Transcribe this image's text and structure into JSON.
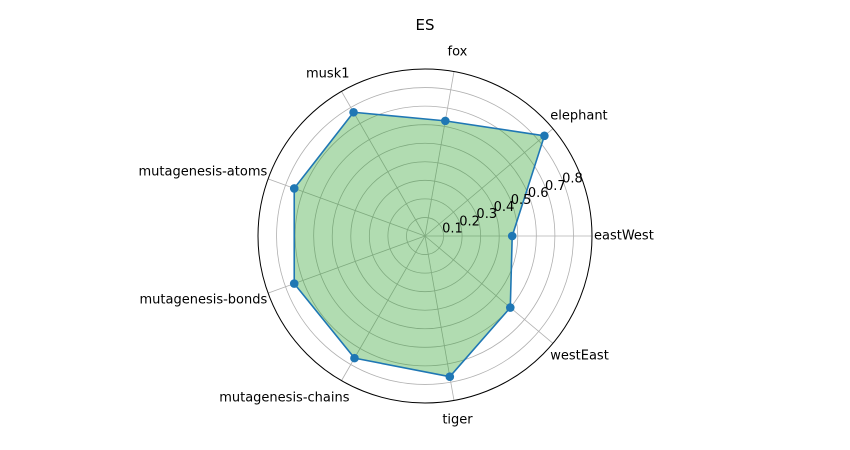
{
  "chart_data": {
    "type": "radar",
    "title": "ES",
    "categories": [
      "eastWest",
      "elephant",
      "fox",
      "musk1",
      "mutagenesis-atoms",
      "mutagenesis-bonds",
      "mutagenesis-chains",
      "tiger",
      "westEast"
    ],
    "series": [
      {
        "values": [
          0.47,
          0.84,
          0.63,
          0.77,
          0.75,
          0.75,
          0.76,
          0.77,
          0.6
        ]
      }
    ],
    "rlim": [
      0,
      0.9
    ],
    "rticks": [
      0.1,
      0.2,
      0.3,
      0.4,
      0.5,
      0.6,
      0.7,
      0.8
    ],
    "grid": true,
    "colors": {
      "line": "#1f77b4",
      "fill": "#2ca02c",
      "marker": "#1f77b4"
    }
  }
}
